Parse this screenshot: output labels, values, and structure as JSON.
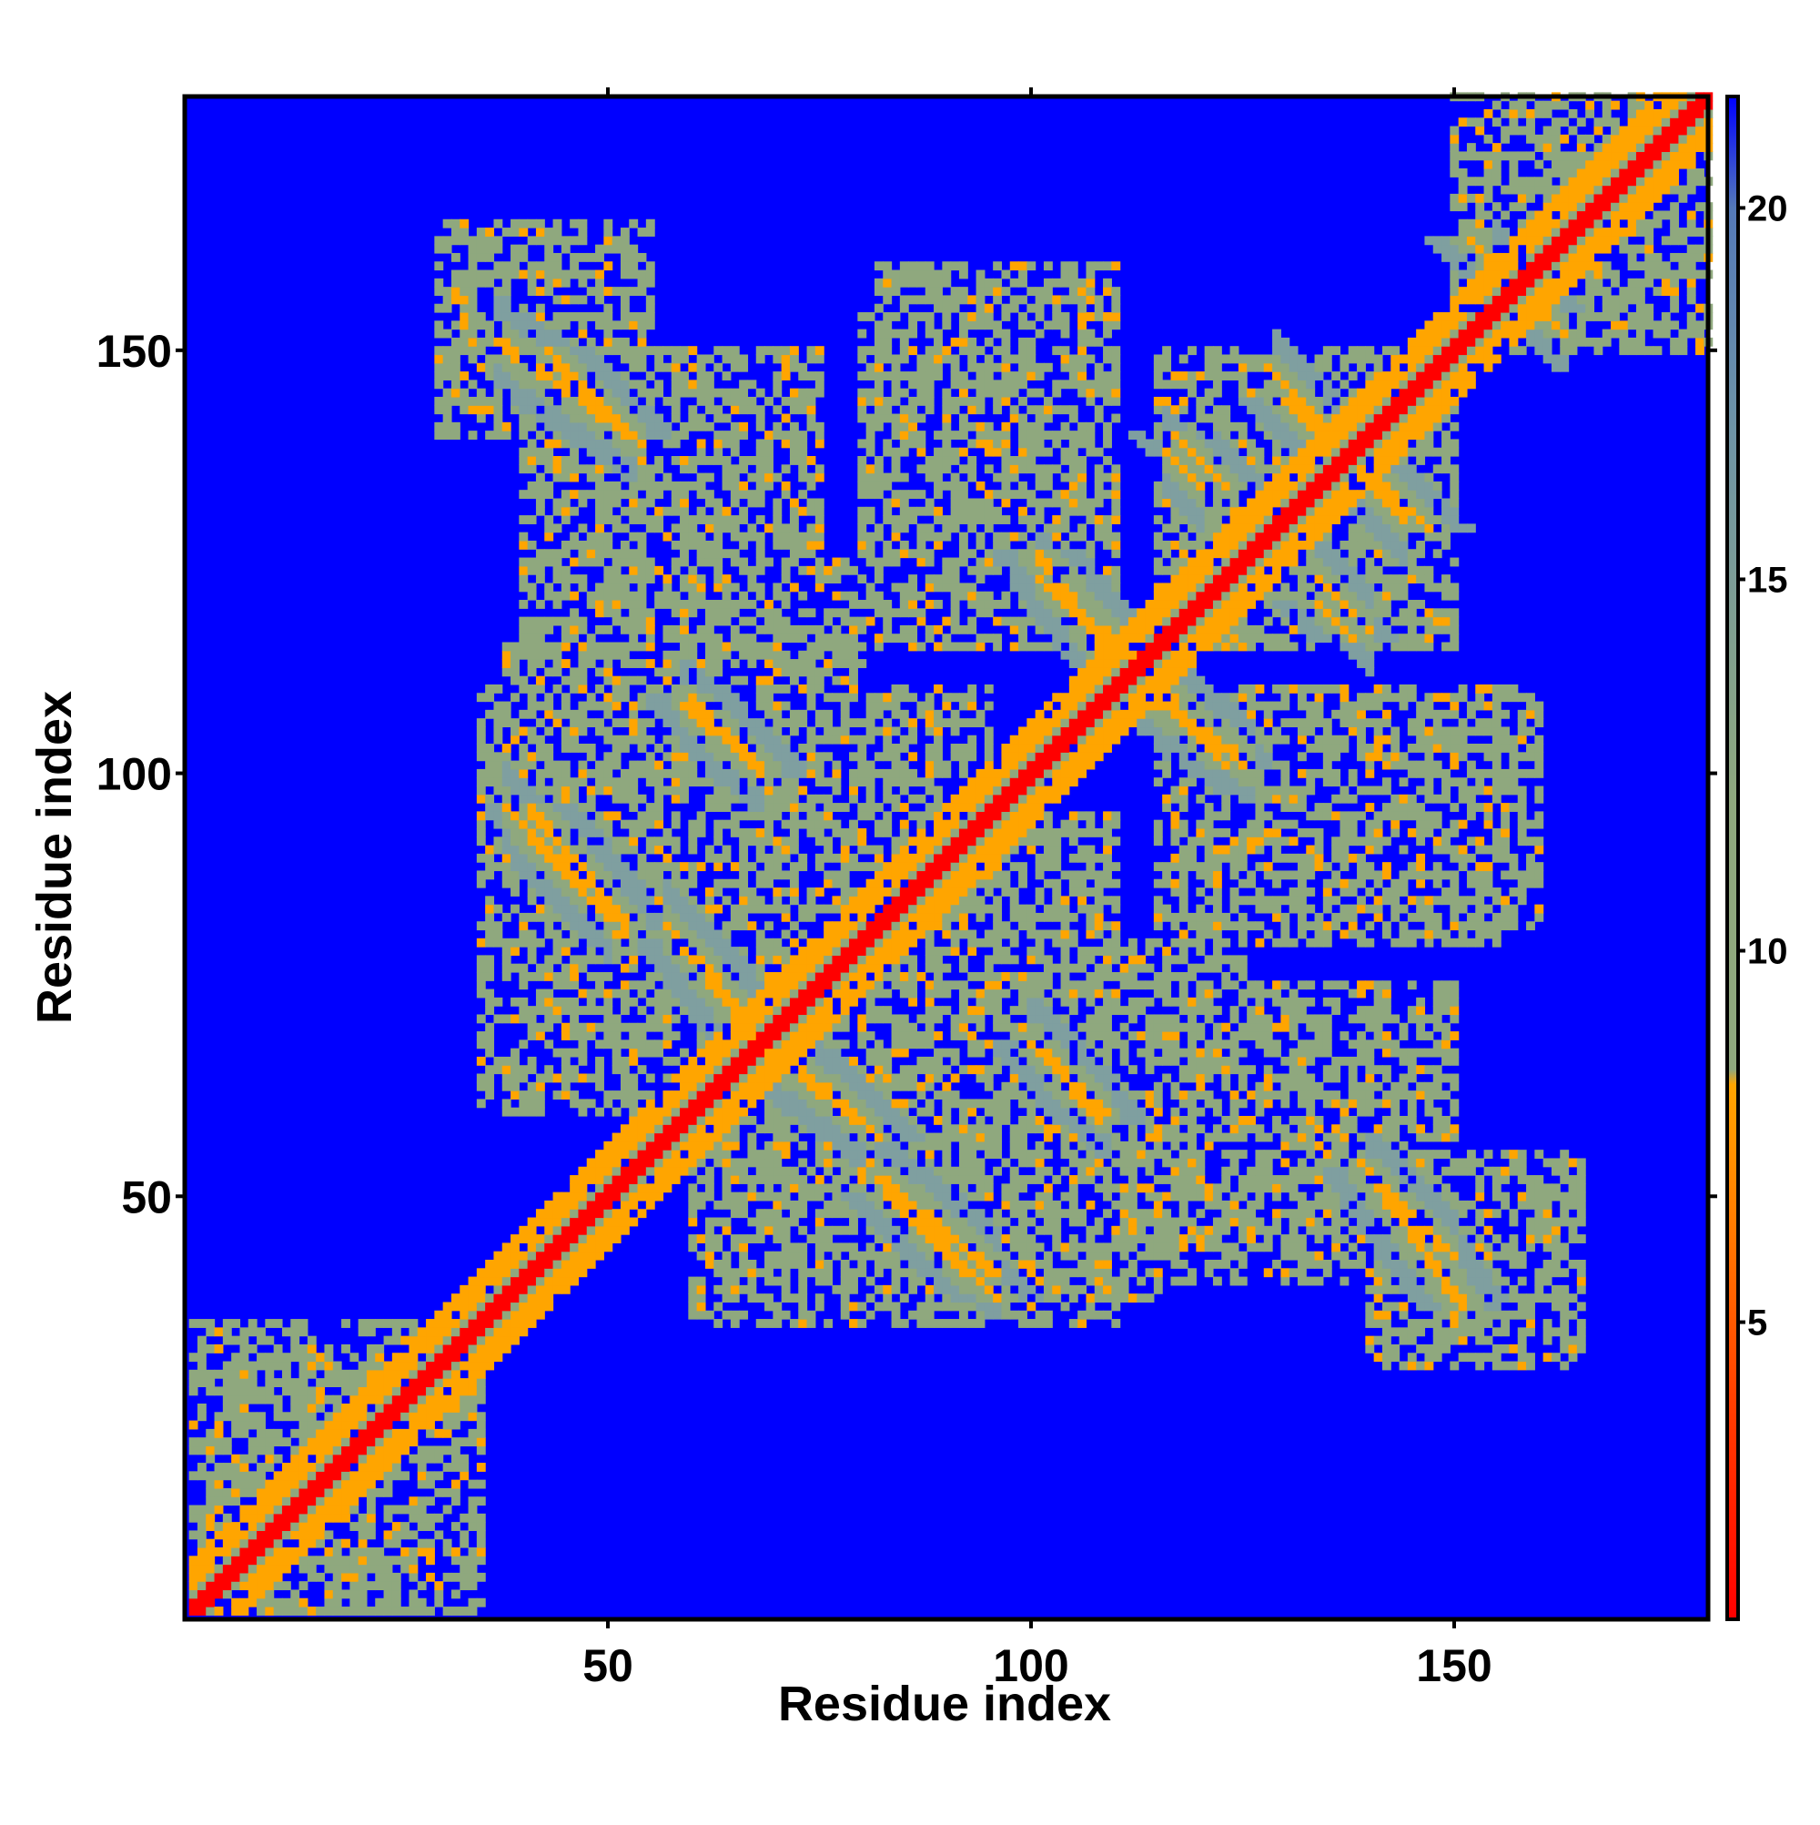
{
  "chart_data": {
    "type": "heatmap",
    "title": "",
    "xlabel": "Residue index",
    "ylabel": "Residue index",
    "n_residues": 180,
    "xlim": [
      1,
      180
    ],
    "ylim": [
      1,
      180
    ],
    "x_ticks": [
      {
        "value": 50,
        "label": "50"
      },
      {
        "value": 100,
        "label": "100"
      },
      {
        "value": 150,
        "label": "150"
      }
    ],
    "y_ticks": [
      {
        "value": 50,
        "label": "50"
      },
      {
        "value": 100,
        "label": "100"
      },
      {
        "value": 150,
        "label": "150"
      }
    ],
    "colorbar": {
      "min": 1,
      "max": 21.5,
      "ticks": [
        {
          "value": 5,
          "label": "5"
        },
        {
          "value": 10,
          "label": "10"
        },
        {
          "value": 15,
          "label": "15"
        },
        {
          "value": 20,
          "label": "20"
        }
      ],
      "stops": [
        {
          "value": 1,
          "color": "#ff0000"
        },
        {
          "value": 4,
          "color": "#ff4000"
        },
        {
          "value": 6.5,
          "color": "#ff8000"
        },
        {
          "value": 8.2,
          "color": "#ffa500"
        },
        {
          "value": 8.4,
          "color": "#8fa87e"
        },
        {
          "value": 12,
          "color": "#8fa87e"
        },
        {
          "value": 17,
          "color": "#6f94a6"
        },
        {
          "value": 20,
          "color": "#5479b8"
        },
        {
          "value": 21.5,
          "color": "#0000ff"
        }
      ]
    },
    "colors": {
      "background": "#0000ff",
      "diagonal": "#ff0000",
      "contact": "#ffa500",
      "near": "#8fa87e"
    },
    "grid": false,
    "legend": "colorbar-right",
    "description_units": "residue indices; values are inter-residue distances",
    "diagonal_band": {
      "value": 1.5
    },
    "antiparallel_strands": [
      {
        "a": [
          37,
          53
        ],
        "b": [
          151,
          140
        ]
      },
      {
        "a": [
          82,
          96
        ],
        "b": [
          52,
          41
        ]
      },
      {
        "a": [
          140,
          150
        ],
        "b": [
          52,
          43
        ]
      },
      {
        "a": [
          38,
          50
        ],
        "b": [
          96,
          83
        ]
      },
      {
        "a": [
          59,
          68
        ],
        "b": [
          108,
          101
        ]
      },
      {
        "a": [
          101,
          113
        ],
        "b": [
          123,
          113
        ]
      },
      {
        "a": [
          113,
          126
        ],
        "b": [
          110,
          101
        ]
      },
      {
        "a": [
          129,
          144
        ],
        "b": [
          147,
          130
        ]
      },
      {
        "a": [
          57,
          65
        ],
        "b": [
          82,
          73
        ]
      },
      {
        "a": [
          68,
          80
        ],
        "b": [
          68,
          59
        ]
      },
      {
        "a": [
          100,
          109
        ],
        "b": [
          68,
          60
        ]
      },
      {
        "a": [
          155,
          163
        ],
        "b": [
          160,
          152
        ]
      },
      {
        "a": [
          116,
          120
        ],
        "b": [
          138,
          134
        ]
      },
      {
        "a": [
          134,
          140
        ],
        "b": [
          123,
          117
        ]
      }
    ],
    "contact_zones": [
      {
        "x": [
          40,
          53
        ],
        "y": [
          125,
          152
        ]
      },
      {
        "x": [
          56,
          72
        ],
        "y": [
          90,
          150
        ]
      },
      {
        "x": [
          82,
          110
        ],
        "y": [
          115,
          160
        ]
      },
      {
        "x": [
          115,
          150
        ],
        "y": [
          115,
          150
        ]
      },
      {
        "x": [
          35,
          60
        ],
        "y": [
          75,
          110
        ]
      },
      {
        "x": [
          60,
          95
        ],
        "y": [
          75,
          110
        ]
      },
      {
        "x": [
          115,
          155
        ],
        "y": [
          80,
          110
        ]
      },
      {
        "x": [
          35,
          100
        ],
        "y": [
          60,
          80
        ]
      },
      {
        "x": [
          70,
          115
        ],
        "y": [
          38,
          70
        ]
      },
      {
        "x": [
          115,
          150
        ],
        "y": [
          40,
          75
        ]
      },
      {
        "x": [
          140,
          165
        ],
        "y": [
          30,
          55
        ]
      },
      {
        "x": [
          1,
          35
        ],
        "y": [
          1,
          35
        ]
      },
      {
        "x": [
          150,
          180
        ],
        "y": [
          150,
          180
        ]
      },
      {
        "x": [
          50,
          75
        ],
        "y": [
          115,
          135
        ]
      },
      {
        "x": [
          100,
          125
        ],
        "y": [
          60,
          80
        ]
      }
    ]
  }
}
